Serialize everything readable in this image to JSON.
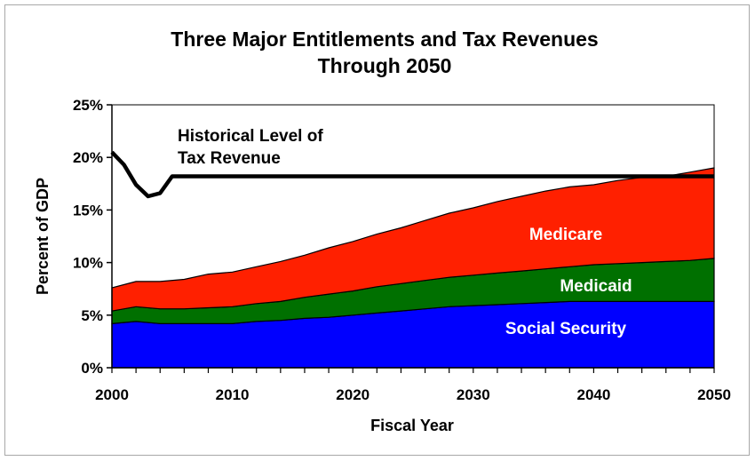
{
  "chart_data": {
    "type": "area",
    "title": [
      "Three Major Entitlements and Tax Revenues",
      "Through 2050"
    ],
    "xlabel": "Fiscal Year",
    "ylabel": "Percent of GDP",
    "xlim": [
      2000,
      2050
    ],
    "ylim": [
      0,
      25
    ],
    "x_ticks": [
      "2000",
      "2010",
      "2020",
      "2030",
      "2040",
      "2050"
    ],
    "x_tick_values": [
      2000,
      2010,
      2020,
      2030,
      2040,
      2050
    ],
    "y_ticks": [
      "0%",
      "5%",
      "10%",
      "15%",
      "20%",
      "25%"
    ],
    "y_tick_values": [
      0,
      5,
      10,
      15,
      20,
      25
    ],
    "stacked": true,
    "x": [
      2000,
      2002,
      2004,
      2006,
      2008,
      2010,
      2012,
      2014,
      2016,
      2018,
      2020,
      2022,
      2024,
      2026,
      2028,
      2030,
      2032,
      2034,
      2036,
      2038,
      2040,
      2042,
      2044,
      2046,
      2048,
      2050
    ],
    "series": [
      {
        "name": "Social Security",
        "color": "#0000ff",
        "values": [
          4.2,
          4.4,
          4.2,
          4.2,
          4.2,
          4.2,
          4.4,
          4.5,
          4.7,
          4.8,
          5.0,
          5.2,
          5.4,
          5.6,
          5.8,
          5.9,
          6.0,
          6.1,
          6.2,
          6.3,
          6.3,
          6.3,
          6.3,
          6.3,
          6.3,
          6.3
        ]
      },
      {
        "name": "Medicaid",
        "color": "#007000",
        "values": [
          1.2,
          1.4,
          1.4,
          1.4,
          1.5,
          1.6,
          1.7,
          1.8,
          2.0,
          2.2,
          2.3,
          2.5,
          2.6,
          2.7,
          2.8,
          2.9,
          3.0,
          3.1,
          3.2,
          3.3,
          3.5,
          3.6,
          3.7,
          3.8,
          3.9,
          4.1
        ]
      },
      {
        "name": "Medicare",
        "color": "#ff2000",
        "values": [
          2.2,
          2.4,
          2.6,
          2.8,
          3.2,
          3.3,
          3.5,
          3.8,
          4.0,
          4.4,
          4.7,
          5.0,
          5.3,
          5.7,
          6.1,
          6.4,
          6.8,
          7.1,
          7.4,
          7.6,
          7.6,
          7.9,
          8.1,
          8.1,
          8.4,
          8.6
        ]
      }
    ],
    "line_series": {
      "name": "Historical Level of Tax Revenue",
      "color": "#000000",
      "x": [
        2000,
        2001,
        2002,
        2003,
        2004,
        2005,
        2050
      ],
      "values": [
        20.5,
        19.3,
        17.4,
        16.3,
        16.6,
        18.2,
        18.2
      ]
    },
    "annotation": [
      "Historical Level of",
      "Tax Revenue"
    ],
    "area_labels": [
      "Medicare",
      "Medicaid",
      "Social Security"
    ]
  }
}
